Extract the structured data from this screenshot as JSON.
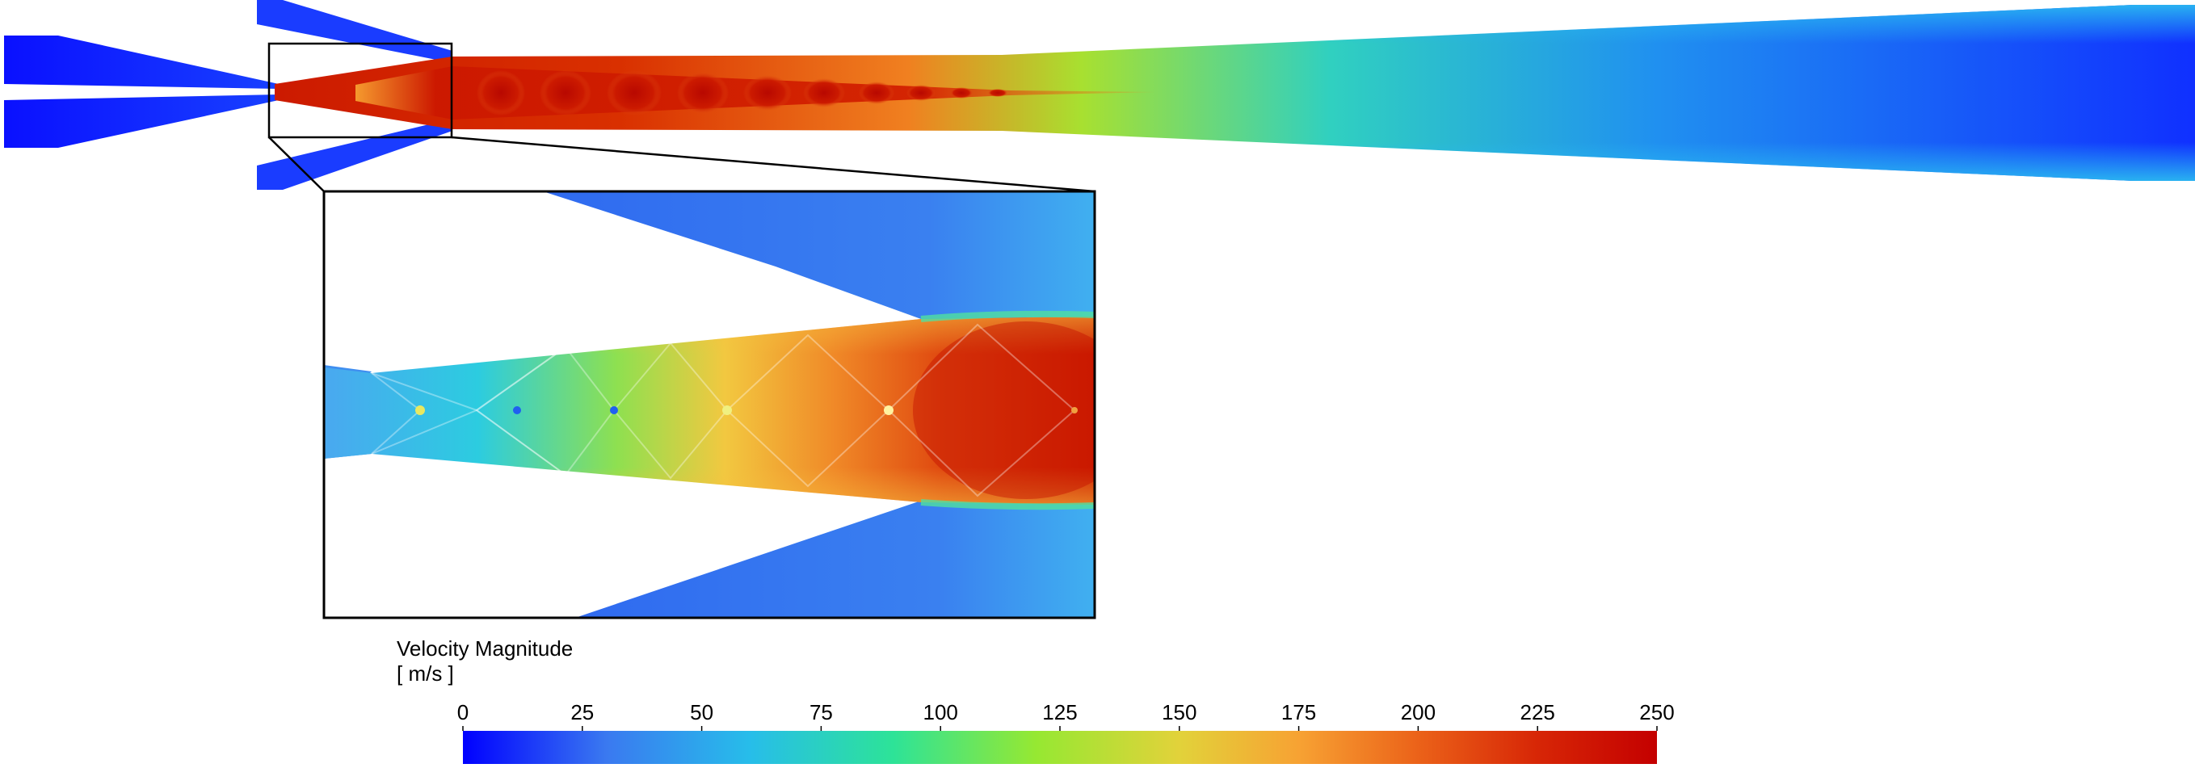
{
  "legend": {
    "title": "Velocity Magnitude",
    "units": "[ m/s ]",
    "min": 0,
    "max": 250,
    "ticks": [
      "0",
      "25",
      "50",
      "75",
      "100",
      "125",
      "150",
      "175",
      "200",
      "225",
      "250"
    ],
    "colormap": [
      "#0000ff",
      "#3a79f0",
      "#27bdea",
      "#2de398",
      "#96e832",
      "#e2d23a",
      "#f7a233",
      "#eb6219",
      "#d72606",
      "#c40000"
    ]
  }
}
